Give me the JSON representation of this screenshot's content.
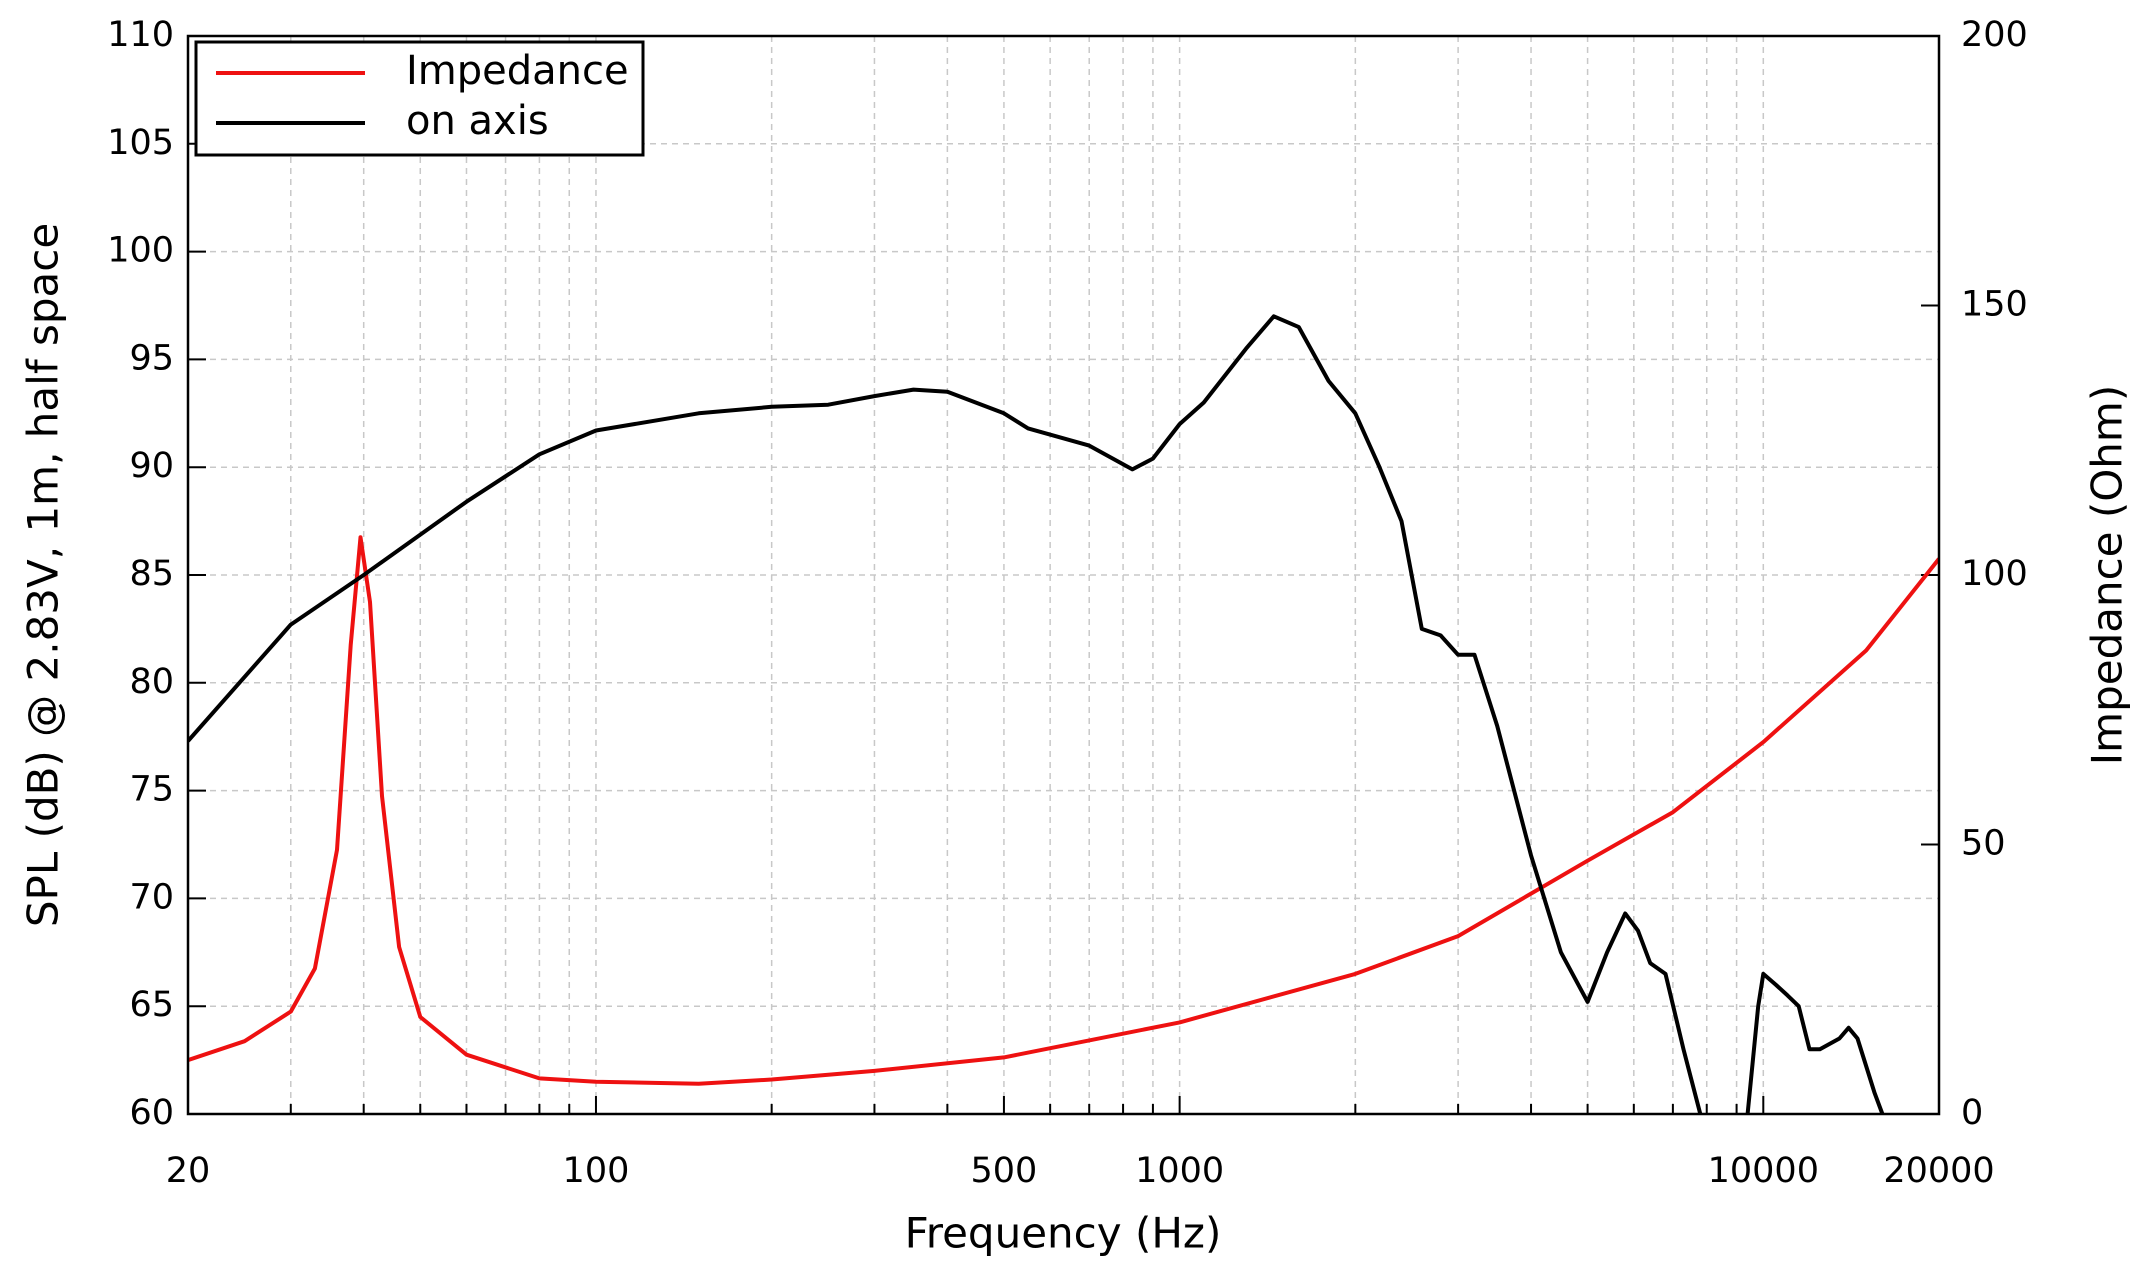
{
  "chart_data": {
    "type": "line",
    "xscale": "log",
    "xlabel": "Frequency (Hz)",
    "ylabel": "SPL (dB) @ 2.83V, 1m, half space",
    "y2label": "Impedance (Ohm)",
    "xlim": [
      20,
      20000
    ],
    "ylim": [
      60,
      110
    ],
    "y2lim": [
      0,
      200
    ],
    "xticks": [
      20,
      100,
      500,
      1000,
      10000,
      20000
    ],
    "xminorticks": [
      30,
      40,
      50,
      60,
      70,
      80,
      90,
      200,
      300,
      400,
      600,
      700,
      800,
      900,
      2000,
      3000,
      4000,
      5000,
      6000,
      7000,
      8000,
      9000
    ],
    "yticks": [
      60,
      65,
      70,
      75,
      80,
      85,
      90,
      95,
      100,
      105,
      110
    ],
    "y2ticks": [
      0,
      50,
      100,
      150,
      200
    ],
    "grid": true,
    "legend": "upper left",
    "series": [
      {
        "name": "Impedance",
        "color": "#ee1111",
        "axis": "y2",
        "x": [
          20,
          25,
          30,
          33,
          36,
          38,
          39.5,
          41,
          43,
          46,
          50,
          60,
          80,
          100,
          150,
          200,
          300,
          500,
          1000,
          2000,
          3000,
          5000,
          7000,
          10000,
          15000,
          20000
        ],
        "values": [
          10,
          13.5,
          19,
          27,
          49,
          87,
          107,
          95,
          59,
          31,
          18,
          11,
          6.6,
          6,
          5.6,
          6.4,
          8,
          10.5,
          17,
          26,
          33,
          47,
          56,
          69,
          86,
          103
        ]
      },
      {
        "name": "on axis",
        "color": "#000000",
        "x": [
          20,
          30,
          40,
          60,
          80,
          100,
          150,
          200,
          250,
          300,
          350,
          400,
          500,
          550,
          700,
          830,
          900,
          1000,
          1100,
          1300,
          1450,
          1600,
          1800,
          2000,
          2200,
          2400,
          2600,
          2800,
          3000,
          3200,
          3500,
          4000,
          4500,
          5000,
          5400,
          5800,
          6100,
          6400,
          6800,
          7300,
          7800,
          8000,
          9400,
          9800,
          10000,
          10500,
          11000,
          11500,
          12000,
          12500,
          13500,
          14000,
          14500,
          15500,
          16000
        ],
        "values": [
          77.3,
          82.7,
          85,
          88.4,
          90.6,
          91.7,
          92.5,
          92.8,
          92.9,
          93.3,
          93.6,
          93.5,
          92.5,
          91.8,
          91,
          89.9,
          90.4,
          92,
          93,
          95.5,
          97,
          96.5,
          94,
          92.5,
          90,
          87.5,
          82.5,
          82.2,
          81.3,
          81.3,
          78,
          72,
          67.5,
          65.2,
          67.5,
          69.3,
          68.5,
          67,
          66.5,
          63,
          60,
          null,
          60,
          65,
          66.5,
          66,
          65.5,
          65,
          63,
          63,
          63.5,
          64,
          63.5,
          61,
          60
        ]
      }
    ]
  }
}
